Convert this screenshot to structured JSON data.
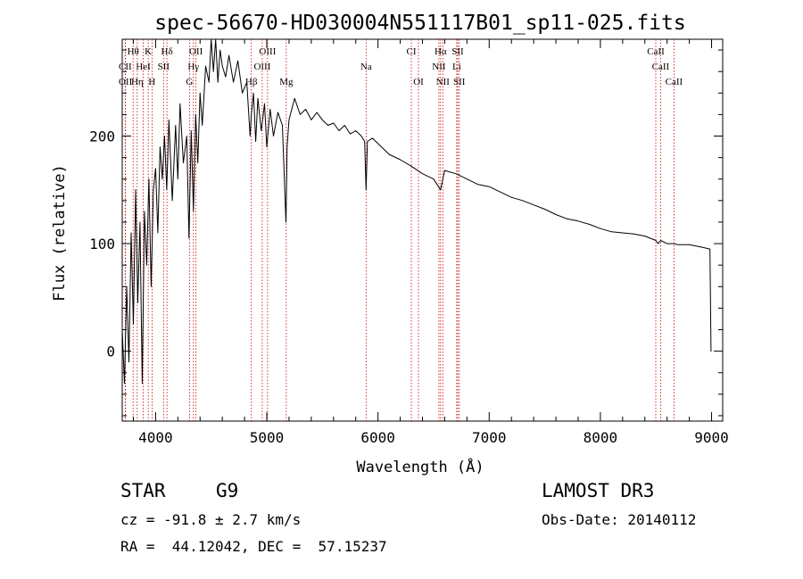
{
  "chart_data": {
    "type": "line",
    "title": "spec-56670-HD030004N551117B01_sp11-025.fits",
    "xlabel": "Wavelength (Å)",
    "ylabel": "Flux (relative)",
    "xlim": [
      3700,
      9100
    ],
    "ylim": [
      -65,
      290
    ],
    "xticks": [
      4000,
      5000,
      6000,
      7000,
      8000,
      9000
    ],
    "yticks": [
      0,
      100,
      200
    ],
    "minor_x_step": 200,
    "minor_y_step": 20,
    "line_color": "#000000",
    "marker_color": "#cc0000",
    "series": [
      {
        "name": "flux",
        "x": [
          3700,
          3720,
          3740,
          3760,
          3780,
          3800,
          3820,
          3840,
          3860,
          3880,
          3900,
          3920,
          3940,
          3960,
          3980,
          4000,
          4020,
          4040,
          4060,
          4080,
          4100,
          4120,
          4150,
          4180,
          4200,
          4220,
          4250,
          4280,
          4300,
          4320,
          4340,
          4360,
          4380,
          4400,
          4420,
          4450,
          4480,
          4500,
          4520,
          4540,
          4560,
          4580,
          4600,
          4630,
          4660,
          4700,
          4740,
          4780,
          4820,
          4850,
          4861,
          4880,
          4900,
          4920,
          4950,
          4980,
          5000,
          5030,
          5060,
          5100,
          5140,
          5172,
          5183,
          5200,
          5250,
          5300,
          5350,
          5400,
          5450,
          5500,
          5550,
          5600,
          5650,
          5700,
          5750,
          5800,
          5850,
          5880,
          5893,
          5905,
          5950,
          6000,
          6100,
          6200,
          6300,
          6400,
          6500,
          6563,
          6600,
          6700,
          6800,
          6900,
          7000,
          7100,
          7200,
          7300,
          7400,
          7500,
          7600,
          7700,
          7800,
          7900,
          8000,
          8100,
          8200,
          8300,
          8400,
          8498,
          8520,
          8542,
          8600,
          8662,
          8700,
          8800,
          8900,
          8985,
          8995,
          9000
        ],
        "y": [
          20,
          -30,
          60,
          -10,
          110,
          25,
          150,
          45,
          120,
          -30,
          130,
          80,
          160,
          60,
          150,
          170,
          110,
          190,
          160,
          200,
          150,
          215,
          140,
          210,
          160,
          230,
          175,
          200,
          105,
          205,
          130,
          220,
          175,
          240,
          210,
          265,
          250,
          290,
          260,
          295,
          250,
          280,
          265,
          255,
          275,
          250,
          270,
          240,
          250,
          200,
          220,
          240,
          195,
          235,
          205,
          230,
          190,
          225,
          200,
          222,
          210,
          120,
          190,
          215,
          235,
          220,
          225,
          215,
          222,
          215,
          210,
          212,
          205,
          210,
          202,
          205,
          200,
          195,
          150,
          195,
          198,
          193,
          183,
          178,
          172,
          165,
          160,
          150,
          168,
          165,
          160,
          155,
          153,
          148,
          143,
          140,
          136,
          132,
          127,
          123,
          121,
          118,
          114,
          111,
          110,
          109,
          107,
          103,
          100,
          103,
          100,
          100,
          99,
          99,
          97,
          95,
          0,
          0
        ]
      }
    ],
    "line_markers": [
      {
        "label": "Hθ",
        "x": 3798,
        "row": 1
      },
      {
        "label": "K",
        "x": 3934,
        "row": 1
      },
      {
        "label": "Hδ",
        "x": 4102,
        "row": 1
      },
      {
        "label": "OII",
        "x": 4363,
        "row": 1
      },
      {
        "label": "OIII",
        "x": 5007,
        "row": 1
      },
      {
        "label": "CI",
        "x": 6300,
        "row": 1
      },
      {
        "label": "Hα",
        "x": 6563,
        "row": 1
      },
      {
        "label": "SII",
        "x": 6717,
        "row": 1
      },
      {
        "label": "CaII",
        "x": 8498,
        "row": 1
      },
      {
        "label": "CII",
        "x": 3727,
        "row": 2
      },
      {
        "label": "HeI",
        "x": 3889,
        "row": 2
      },
      {
        "label": "SII",
        "x": 4072,
        "row": 2
      },
      {
        "label": "Hγ",
        "x": 4340,
        "row": 2
      },
      {
        "label": "OIII",
        "x": 4959,
        "row": 2
      },
      {
        "label": "Na",
        "x": 5893,
        "row": 2
      },
      {
        "label": "NII",
        "x": 6548,
        "row": 2
      },
      {
        "label": "Li",
        "x": 6708,
        "row": 2
      },
      {
        "label": "CaII",
        "x": 8542,
        "row": 2
      },
      {
        "label": "OII",
        "x": 3729,
        "row": 3
      },
      {
        "label": "Hη",
        "x": 3835,
        "row": 3
      },
      {
        "label": "H",
        "x": 3968,
        "row": 3
      },
      {
        "label": "G",
        "x": 4305,
        "row": 3
      },
      {
        "label": "Hβ",
        "x": 4861,
        "row": 3
      },
      {
        "label": "Mg",
        "x": 5175,
        "row": 3
      },
      {
        "label": "OI",
        "x": 6364,
        "row": 3
      },
      {
        "label": "NII",
        "x": 6583,
        "row": 3
      },
      {
        "label": "SII",
        "x": 6731,
        "row": 3
      },
      {
        "label": "CaII",
        "x": 8662,
        "row": 3
      }
    ]
  },
  "info": {
    "obj_class": "STAR",
    "subclass": "G9",
    "survey": "LAMOST DR3",
    "cz": "cz = -91.8 ± 2.7 km/s",
    "obs_date": "Obs-Date: 20140112",
    "radec": "RA =  44.12042, DEC =  57.15237"
  }
}
